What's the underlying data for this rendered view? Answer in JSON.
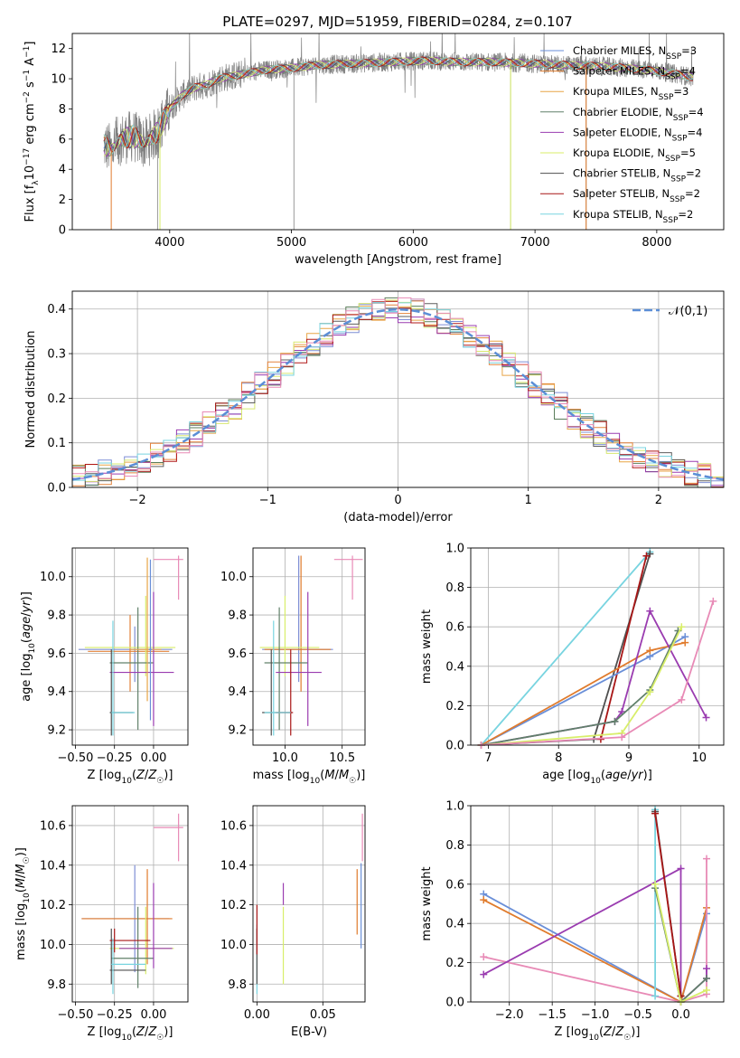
{
  "figure": {
    "title": "PLATE=0297, MJD=51959, FIBERID=0284, z=0.107",
    "colors": {
      "c1": "#7f8fd6",
      "c2": "#e3823a",
      "c3": "#e8a547",
      "c4": "#5a7d5a",
      "c5": "#9a3cb0",
      "c6": "#d8e870",
      "c7": "#5f5f5f",
      "c8": "#b01818",
      "c9": "#78d4e0",
      "c10": "#e88ab6",
      "blue": "#6a8fd8",
      "orange": "#e07b2c",
      "green": "#60806a",
      "purple": "#9a3cb0",
      "yellow": "#d8ee6a",
      "gray": "#4f4f4f",
      "red": "#a81616",
      "cyan": "#78d4e0",
      "pink": "#e88ab6",
      "gauss": "#5b8ed6",
      "spec": "#808080",
      "grid": "#b0b0b0"
    }
  },
  "chart_data": [
    {
      "type": "line",
      "xlabel": "wavelength [Angstrom, rest frame]",
      "ylabel": "Flux [f_λ 10^-17 erg cm^-2 s^-1 A^-1]",
      "xlim": [
        3200,
        8550
      ],
      "ylim": [
        0,
        13
      ],
      "xticks": [
        "4000",
        "5000",
        "6000",
        "7000",
        "8000"
      ],
      "yticks": [
        "0",
        "2",
        "4",
        "6",
        "8",
        "10",
        "12"
      ],
      "grid": false,
      "legend_position": "top-right",
      "legend": [
        {
          "label": "Chabrier MILES, N_SSP=3",
          "color": "blue"
        },
        {
          "label": "Salpeter MILES, N_SSP=4",
          "color": "orange"
        },
        {
          "label": "Kroupa MILES, N_SSP=3",
          "color": "c3"
        },
        {
          "label": "Chabrier ELODIE, N_SSP=4",
          "color": "green"
        },
        {
          "label": "Salpeter ELODIE, N_SSP=4",
          "color": "purple"
        },
        {
          "label": "Kroupa ELODIE, N_SSP=5",
          "color": "yellow"
        },
        {
          "label": "Chabrier STELIB, N_SSP=2",
          "color": "gray"
        },
        {
          "label": "Salpeter STELIB, N_SSP=2",
          "color": "red"
        },
        {
          "label": "Kroupa STELIB, N_SSP=2",
          "color": "cyan"
        }
      ],
      "continuum": [
        [
          3460,
          5.6
        ],
        [
          3520,
          5.3
        ],
        [
          3600,
          6.0
        ],
        [
          3700,
          6.2
        ],
        [
          3800,
          5.7
        ],
        [
          3900,
          6.5
        ],
        [
          4000,
          8.0
        ],
        [
          4100,
          8.9
        ],
        [
          4200,
          9.4
        ],
        [
          4300,
          9.6
        ],
        [
          4400,
          10.0
        ],
        [
          4600,
          10.3
        ],
        [
          4800,
          10.6
        ],
        [
          5000,
          10.7
        ],
        [
          5200,
          10.9
        ],
        [
          5500,
          11.0
        ],
        [
          5800,
          11.1
        ],
        [
          6100,
          11.2
        ],
        [
          6400,
          11.1
        ],
        [
          6700,
          11.1
        ],
        [
          7000,
          11.0
        ],
        [
          7300,
          10.9
        ],
        [
          7600,
          10.8
        ],
        [
          7900,
          10.6
        ],
        [
          8100,
          10.4
        ],
        [
          8300,
          10.1
        ]
      ]
    },
    {
      "type": "bar",
      "xlabel": "(data-model)/error",
      "ylabel": "Normed distribution",
      "xlim": [
        -2.5,
        2.5
      ],
      "ylim": [
        0,
        0.44
      ],
      "xticks": [
        "−2",
        "−1",
        "0",
        "1",
        "2"
      ],
      "yticks": [
        "0.0",
        "0.1",
        "0.2",
        "0.3",
        "0.4"
      ],
      "grid": true,
      "legend_position": "top-right",
      "gaussian_label": "𝒩(0,1)",
      "bin_width": 0.1
    },
    {
      "type": "scatter",
      "xlabel": "Z [log10(Z/Z☉)]",
      "ylabel": "age  [log10(age/yr)]",
      "xlim": [
        -0.52,
        0.22
      ],
      "ylim": [
        9.12,
        10.15
      ],
      "xticks": [
        "−0.50",
        "−0.25",
        "0.00"
      ],
      "yticks": [
        "9.2",
        "9.4",
        "9.6",
        "9.8",
        "10.0"
      ],
      "grid": true
    },
    {
      "type": "scatter",
      "xlabel": "mass [log10(M/M☉)]",
      "ylabel": "",
      "xlim": [
        9.72,
        10.7
      ],
      "ylim": [
        9.12,
        10.15
      ],
      "xticks": [
        "10.0",
        "10.5"
      ],
      "yticks": [
        "9.2",
        "9.4",
        "9.6",
        "9.8",
        "10.0"
      ],
      "grid": true
    },
    {
      "type": "line",
      "xlabel": "age  [log10(age/yr)]",
      "ylabel": "mass weight",
      "xlim": [
        6.75,
        10.35
      ],
      "ylim": [
        0,
        1.0
      ],
      "xticks": [
        "7",
        "8",
        "9",
        "10"
      ],
      "yticks": [
        "0.0",
        "0.2",
        "0.4",
        "0.6",
        "0.8",
        "1.0"
      ],
      "grid": true,
      "series": [
        {
          "color": "cyan",
          "x": [
            6.9,
            9.3
          ],
          "y": [
            0.0,
            0.98
          ]
        },
        {
          "color": "gray",
          "x": [
            6.9,
            8.5,
            9.3
          ],
          "y": [
            0.0,
            0.03,
            0.97
          ]
        },
        {
          "color": "red",
          "x": [
            8.6,
            9.25
          ],
          "y": [
            0.03,
            0.96
          ]
        },
        {
          "color": "blue",
          "x": [
            6.9,
            9.3,
            9.8
          ],
          "y": [
            0.0,
            0.45,
            0.55
          ]
        },
        {
          "color": "orange",
          "x": [
            6.9,
            9.3,
            9.8
          ],
          "y": [
            0.0,
            0.48,
            0.52
          ]
        },
        {
          "color": "purple",
          "x": [
            6.9,
            8.8,
            8.9,
            9.3,
            10.1
          ],
          "y": [
            0.0,
            0.12,
            0.17,
            0.68,
            0.14
          ]
        },
        {
          "color": "green",
          "x": [
            6.9,
            8.8,
            9.3,
            9.7
          ],
          "y": [
            0.0,
            0.12,
            0.28,
            0.58
          ]
        },
        {
          "color": "yellow",
          "x": [
            6.9,
            8.9,
            9.3,
            9.75
          ],
          "y": [
            0.0,
            0.06,
            0.27,
            0.6
          ]
        },
        {
          "color": "pink",
          "x": [
            6.9,
            8.9,
            9.75,
            10.2
          ],
          "y": [
            0.0,
            0.04,
            0.23,
            0.73
          ]
        }
      ]
    },
    {
      "type": "scatter",
      "xlabel": "Z [log10(Z/Z☉)]",
      "ylabel": "mass [log10(M/M☉)]",
      "xlim": [
        -0.52,
        0.22
      ],
      "ylim": [
        9.71,
        10.7
      ],
      "xticks": [
        "−0.50",
        "−0.25",
        "0.00"
      ],
      "yticks": [
        "9.8",
        "10.0",
        "10.2",
        "10.4",
        "10.6"
      ],
      "grid": true
    },
    {
      "type": "scatter",
      "xlabel": "E(B-V)",
      "ylabel": "",
      "xlim": [
        -0.003,
        0.082
      ],
      "ylim": [
        9.71,
        10.7
      ],
      "xticks": [
        "0.00",
        "0.05"
      ],
      "yticks": [
        "9.8",
        "10.0",
        "10.2",
        "10.4",
        "10.6"
      ],
      "grid": true
    },
    {
      "type": "line",
      "xlabel": "Z [log10(Z/Z☉)]",
      "ylabel": "mass weight",
      "xlim": [
        -2.45,
        0.5
      ],
      "ylim": [
        0,
        1.0
      ],
      "xticks": [
        "−2.0",
        "−1.5",
        "−1.0",
        "−0.5",
        "0.0"
      ],
      "yticks": [
        "0.0",
        "0.2",
        "0.4",
        "0.6",
        "0.8",
        "1.0"
      ],
      "grid": true,
      "series": [
        {
          "color": "blue",
          "x": [
            -2.3,
            0.0,
            0.3
          ],
          "y": [
            0.55,
            0.0,
            0.45
          ]
        },
        {
          "color": "orange",
          "x": [
            -2.3,
            0.0,
            0.3
          ],
          "y": [
            0.52,
            0.0,
            0.48
          ]
        },
        {
          "color": "pink",
          "x": [
            -2.3,
            0.0,
            0.3,
            0.3
          ],
          "y": [
            0.23,
            0.0,
            0.04,
            0.73
          ]
        },
        {
          "color": "purple",
          "x": [
            -2.3,
            0.0,
            0.0,
            0.3,
            0.3
          ],
          "y": [
            0.14,
            0.68,
            0.0,
            0.12,
            0.17
          ]
        },
        {
          "color": "cyan",
          "x": [
            -0.3,
            -0.3
          ],
          "y": [
            0.03,
            0.98
          ]
        },
        {
          "color": "gray",
          "x": [
            -0.3,
            0.0
          ],
          "y": [
            0.97,
            0.03
          ]
        },
        {
          "color": "red",
          "x": [
            -0.3,
            0.0
          ],
          "y": [
            0.96,
            0.03
          ]
        },
        {
          "color": "green",
          "x": [
            -0.3,
            0.0,
            0.3
          ],
          "y": [
            0.58,
            0.0,
            0.12
          ]
        },
        {
          "color": "yellow",
          "x": [
            -0.3,
            0.0,
            0.3
          ],
          "y": [
            0.6,
            0.0,
            0.06
          ]
        }
      ]
    }
  ]
}
